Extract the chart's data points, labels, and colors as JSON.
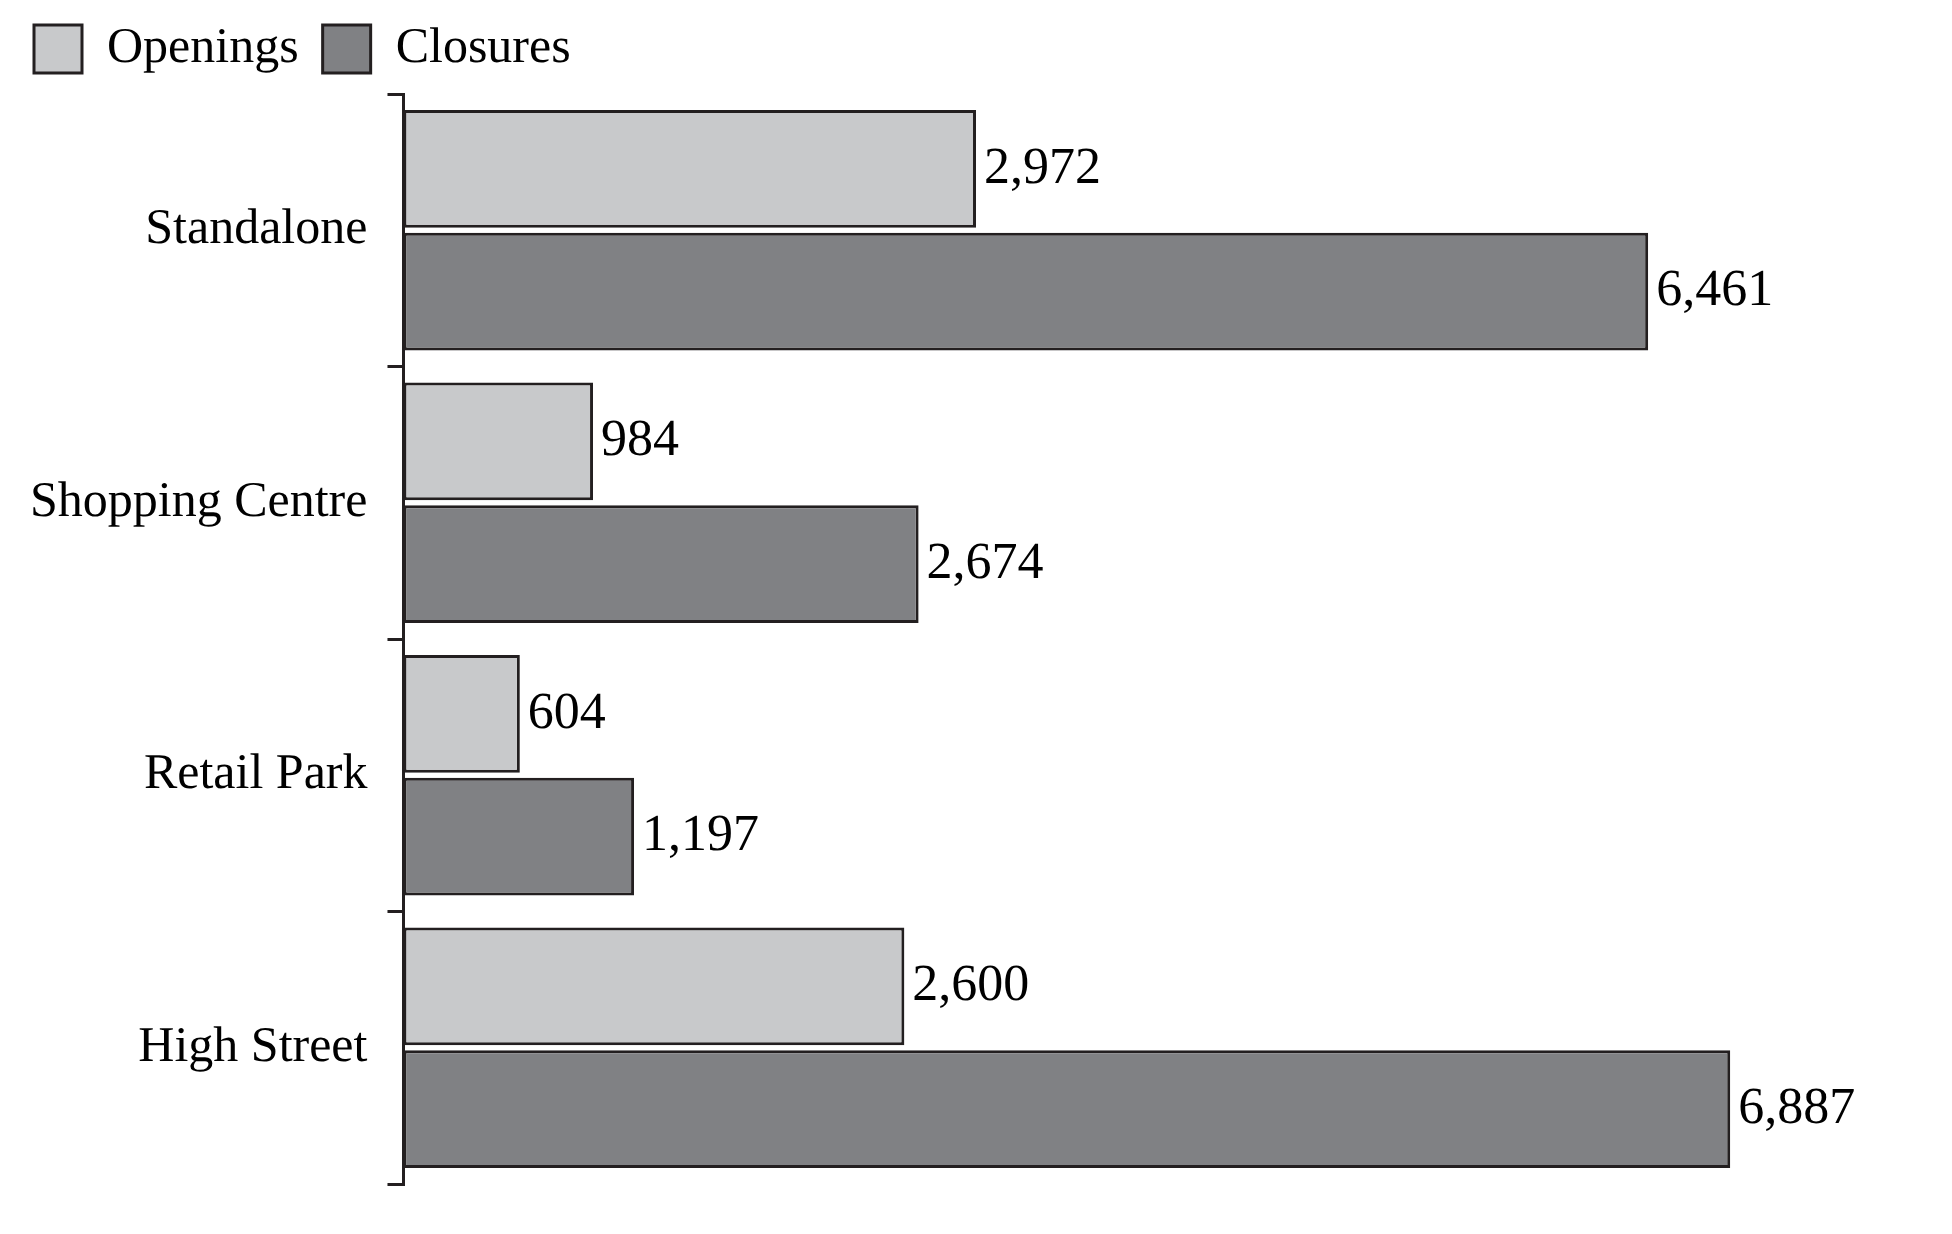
{
  "chart_data": {
    "type": "bar",
    "orientation": "horizontal",
    "categories": [
      "Standalone",
      "Shopping Centre",
      "Retail Park",
      "High Street"
    ],
    "series": [
      {
        "name": "Openings",
        "color": "#c8c9cb",
        "values": [
          2972,
          984,
          604,
          2600
        ],
        "value_labels": [
          "2,972",
          "984",
          "604",
          "2,600"
        ]
      },
      {
        "name": "Closures",
        "color": "#808184",
        "values": [
          6461,
          2674,
          1197,
          6887
        ],
        "value_labels": [
          "6,461",
          "2,674",
          "1,197",
          "6,887"
        ]
      }
    ],
    "legend": "top left",
    "tick_labels": "y"
  }
}
